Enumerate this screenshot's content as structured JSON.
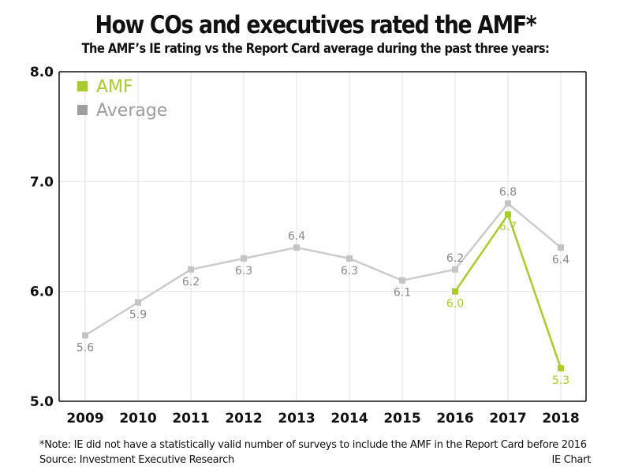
{
  "header": {
    "title": "How COs and executives rated the AMF*",
    "subtitle": "The AMF’s IE rating vs the Report Card average during the past three years:"
  },
  "footer": {
    "note": "*Note: IE did not have a statistically valid number of surveys to include the AMF in the Report Card before 2016",
    "source": "Source: Investment Executive Research",
    "credit": "IE Chart"
  },
  "colors": {
    "amf": "#a8cc2c",
    "average_line": "#cccccc",
    "average_marker": "#c4c4c4",
    "average_label": "#8a8a8a",
    "legend_average": "#9e9e9e",
    "grid": "#e2e2e2",
    "axis": "#111111"
  },
  "chart_data": {
    "type": "line",
    "title": "How COs and executives rated the AMF*",
    "subtitle": "The AMF’s IE rating vs the Report Card average during the past three years:",
    "xlabel": "",
    "ylabel": "",
    "categories": [
      "2009",
      "2010",
      "2011",
      "2012",
      "2013",
      "2014",
      "2015",
      "2016",
      "2017",
      "2018"
    ],
    "ylim": [
      5.0,
      8.0
    ],
    "yticks": [
      5.0,
      6.0,
      7.0,
      8.0
    ],
    "ytick_labels": [
      "5.0",
      "6.0",
      "7.0",
      "8.0"
    ],
    "grid": true,
    "legend_position": "top-left",
    "series": [
      {
        "name": "AMF",
        "values": [
          null,
          null,
          null,
          null,
          null,
          null,
          null,
          6.0,
          6.7,
          5.3
        ],
        "labels": [
          "",
          "",
          "",
          "",
          "",
          "",
          "",
          "6.0",
          "6.7",
          "5.3"
        ],
        "label_pos": [
          "",
          "",
          "",
          "",
          "",
          "",
          "",
          "below",
          "below",
          "below"
        ]
      },
      {
        "name": "Average",
        "values": [
          5.6,
          5.9,
          6.2,
          6.3,
          6.4,
          6.3,
          6.1,
          6.2,
          6.8,
          6.4
        ],
        "labels": [
          "5.6",
          "5.9",
          "6.2",
          "6.3",
          "6.4",
          "6.3",
          "6.1",
          "6.2",
          "6.8",
          "6.4"
        ],
        "label_pos": [
          "below",
          "below",
          "below",
          "below",
          "above",
          "below",
          "below",
          "above",
          "above",
          "below"
        ]
      }
    ]
  }
}
